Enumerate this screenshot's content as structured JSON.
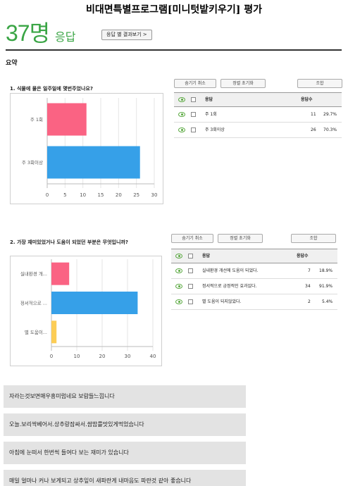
{
  "header": {
    "title": "비대면특별프로그램[미니텃밭키우기]  평가",
    "response_count": "37명",
    "response_label": "응답",
    "view_by_response_button": "응답 별 결과보기 >"
  },
  "summary_label": "요약",
  "questions": [
    {
      "title": "1. 식물에 물은 일주일에 몇번주었나요?",
      "buttons": {
        "hide_cancel": "숨기기 취소",
        "sort_reset": "정렬 초기화",
        "filter": "조합"
      },
      "table_headers": {
        "response": "응답",
        "count": "응답수"
      },
      "rows": [
        {
          "label": "주 1회",
          "count": "11",
          "percent": "29.7%"
        },
        {
          "label": "주 3회이상",
          "count": "26",
          "percent": "70.3%"
        }
      ]
    },
    {
      "title": "2. 가장 재미있었거나 도움이 되었던 부분은 무엇입니까?",
      "buttons": {
        "hide_cancel": "숨기기 취소",
        "sort_reset": "정렬 초기화",
        "filter": "조합"
      },
      "table_headers": {
        "response": "응답",
        "count": "응답수"
      },
      "rows": [
        {
          "label": "실내환경 개선에 도움이 되었다.",
          "count": "7",
          "percent": "18.9%"
        },
        {
          "label": "정서적으로 긍정적인 효과있다.",
          "count": "34",
          "percent": "91.9%"
        },
        {
          "label": "별 도움이 되지않았다.",
          "count": "2",
          "percent": "5.4%"
        }
      ]
    }
  ],
  "chart_data": [
    {
      "type": "bar",
      "orientation": "horizontal",
      "categories": [
        "주 1회",
        "주 3회이상"
      ],
      "values": [
        11,
        26
      ],
      "colors": [
        "#fa6383",
        "#36a0e8"
      ],
      "xlim": [
        0,
        30
      ],
      "x_ticks": [
        "0",
        "5",
        "10",
        "15",
        "20",
        "25",
        "30"
      ]
    },
    {
      "type": "bar",
      "orientation": "horizontal",
      "categories": [
        "실내환경 개...",
        "정서적으로 ...",
        "별 도움이..."
      ],
      "values": [
        7,
        34,
        2
      ],
      "colors": [
        "#fa6383",
        "#36a0e8",
        "#fccd56"
      ],
      "xlim": [
        0,
        40
      ],
      "x_ticks": [
        "0",
        "10",
        "20",
        "30",
        "40"
      ]
    }
  ],
  "text_responses": [
    "자라는것보면매우흥미럽네요 보람들느낌니다",
    "오늘.보리싹베어서.상추랑잠싸서.쌈밥를맛있게먹었습니다",
    "아침에 눈떠서 한번씩 들여다 보는 재미가 있습니다",
    "매일 얼마나 커나 보게되고 상추잎이 새파란게 내마음도 파란것 같아 좋습니다"
  ]
}
